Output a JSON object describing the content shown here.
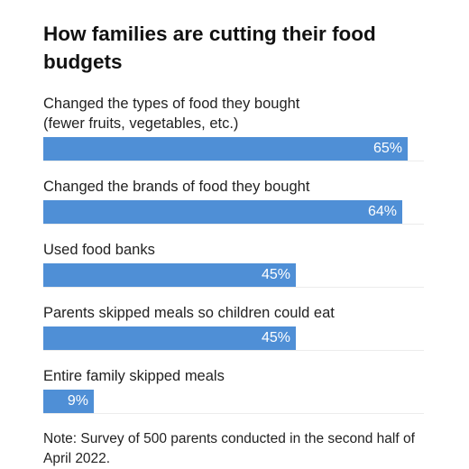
{
  "chart_data": {
    "type": "bar",
    "orientation": "horizontal",
    "title": "How families are cutting their food budgets",
    "categories": [
      [
        "Changed the types of food they bought",
        "(fewer fruits, vegetables, etc.)"
      ],
      [
        "Changed the brands of food they bought"
      ],
      [
        "Used food banks"
      ],
      [
        "Parents skipped meals so children could eat"
      ],
      [
        "Entire family skipped meals"
      ]
    ],
    "values": [
      65,
      64,
      45,
      45,
      9
    ],
    "value_labels": [
      "65%",
      "64%",
      "45%",
      "45%",
      "9%"
    ],
    "xlim": [
      0,
      100
    ],
    "bar_color": "#4f8fd6",
    "grid": false,
    "legend": "none"
  },
  "note": "Note: Survey of 500 parents conducted in the second half of April 2022."
}
